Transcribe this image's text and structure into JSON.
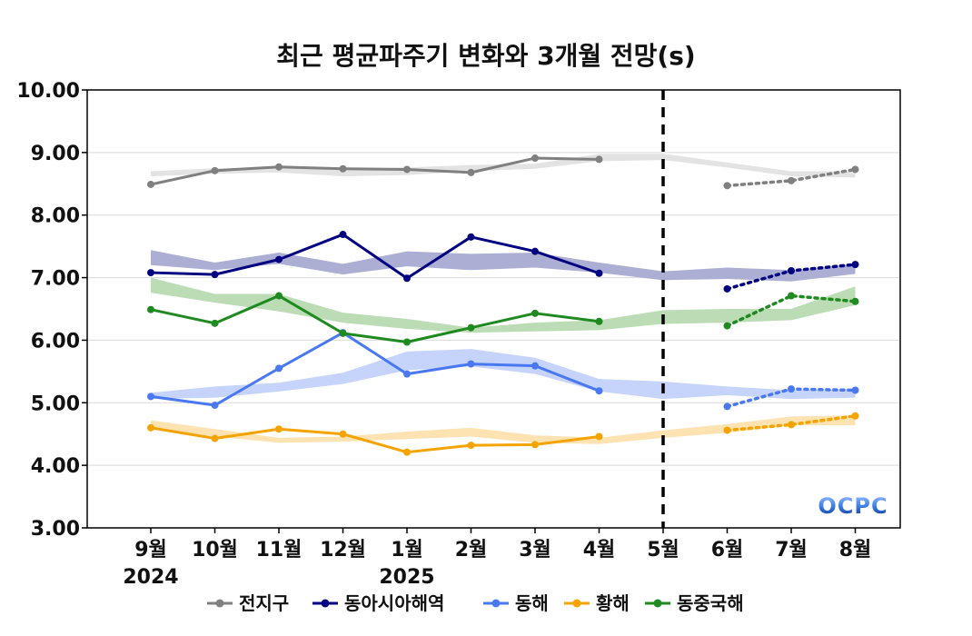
{
  "chart_data": {
    "type": "line",
    "title": "최근 평균파주기 변화와 3개월 전망(s)",
    "logo": "OCPC",
    "ylim": [
      3.0,
      10.0
    ],
    "yticks": [
      "3.00",
      "4.00",
      "5.00",
      "6.00",
      "7.00",
      "8.00",
      "9.00",
      "10.00"
    ],
    "categories": [
      "9월",
      "10월",
      "11월",
      "12월",
      "1월",
      "2월",
      "3월",
      "4월",
      "5월",
      "6월",
      "7월",
      "8월"
    ],
    "year_labels": [
      {
        "category": "9월",
        "text": "2024"
      },
      {
        "category": "1월",
        "text": "2025"
      }
    ],
    "divider_category": "5월",
    "grid": "horizontal",
    "legend": "bottom",
    "series": [
      {
        "name": "전지구",
        "color": "#808080",
        "band_color": "#e3e3e3",
        "band_low": [
          8.62,
          8.66,
          8.68,
          8.62,
          8.64,
          8.7,
          8.74,
          8.86,
          8.88,
          8.76,
          8.62,
          8.6
        ],
        "band_high": [
          8.7,
          8.75,
          8.76,
          8.74,
          8.76,
          8.8,
          8.82,
          8.98,
          8.98,
          8.84,
          8.7,
          8.7
        ],
        "observed": [
          8.49,
          8.71,
          8.77,
          8.74,
          8.73,
          8.68,
          8.91,
          8.89,
          null,
          null,
          null,
          null
        ],
        "forecast": [
          null,
          null,
          null,
          null,
          null,
          null,
          null,
          null,
          null,
          8.47,
          8.55,
          8.73
        ]
      },
      {
        "name": "동아시아해역",
        "color": "#000080",
        "band_color": "#acaed4",
        "band_low": [
          7.2,
          7.12,
          7.22,
          7.05,
          7.18,
          7.12,
          7.16,
          7.08,
          6.96,
          6.98,
          6.94,
          7.06
        ],
        "band_high": [
          7.44,
          7.24,
          7.4,
          7.22,
          7.42,
          7.38,
          7.4,
          7.24,
          7.1,
          7.16,
          7.12,
          7.22
        ],
        "observed": [
          7.08,
          7.05,
          7.29,
          7.69,
          6.99,
          7.65,
          7.42,
          7.07,
          null,
          null,
          null,
          null
        ],
        "forecast": [
          null,
          null,
          null,
          null,
          null,
          null,
          null,
          null,
          null,
          6.82,
          7.11,
          7.21
        ]
      },
      {
        "name": "동해",
        "color": "#4a78f0",
        "band_color": "#c6d4fb",
        "band_low": [
          5.06,
          5.08,
          5.18,
          5.3,
          5.52,
          5.58,
          5.46,
          5.18,
          5.06,
          5.12,
          5.06,
          5.08
        ],
        "band_high": [
          5.16,
          5.26,
          5.32,
          5.48,
          5.82,
          5.86,
          5.72,
          5.38,
          5.34,
          5.26,
          5.2,
          5.22
        ],
        "observed": [
          5.1,
          4.96,
          5.55,
          6.12,
          5.46,
          5.62,
          5.59,
          5.19,
          null,
          null,
          null,
          null
        ],
        "forecast": [
          null,
          null,
          null,
          null,
          null,
          null,
          null,
          null,
          null,
          4.94,
          5.22,
          5.2
        ]
      },
      {
        "name": "황해",
        "color": "#f5a300",
        "band_color": "#fde2b2",
        "band_low": [
          4.6,
          4.46,
          4.36,
          4.38,
          4.42,
          4.46,
          4.36,
          4.34,
          4.44,
          4.52,
          4.64,
          4.64
        ],
        "band_high": [
          4.72,
          4.58,
          4.44,
          4.46,
          4.54,
          4.6,
          4.48,
          4.44,
          4.56,
          4.66,
          4.78,
          4.8
        ],
        "observed": [
          4.6,
          4.43,
          4.58,
          4.5,
          4.21,
          4.32,
          4.33,
          4.46,
          null,
          null,
          null,
          null
        ],
        "forecast": [
          null,
          null,
          null,
          null,
          null,
          null,
          null,
          null,
          null,
          4.56,
          4.65,
          4.79
        ]
      },
      {
        "name": "동중국해",
        "color": "#1f8a1f",
        "band_color": "#bcdcb5",
        "band_low": [
          6.76,
          6.6,
          6.46,
          6.28,
          6.18,
          6.12,
          6.14,
          6.16,
          6.26,
          6.28,
          6.32,
          6.56
        ],
        "band_high": [
          7.0,
          6.74,
          6.74,
          6.44,
          6.34,
          6.2,
          6.28,
          6.32,
          6.48,
          6.5,
          6.5,
          6.86
        ],
        "observed": [
          6.49,
          6.27,
          6.71,
          6.11,
          5.97,
          6.2,
          6.43,
          6.3,
          null,
          null,
          null,
          null
        ],
        "forecast": [
          null,
          null,
          null,
          null,
          null,
          null,
          null,
          null,
          null,
          6.23,
          6.71,
          6.62
        ]
      }
    ]
  }
}
